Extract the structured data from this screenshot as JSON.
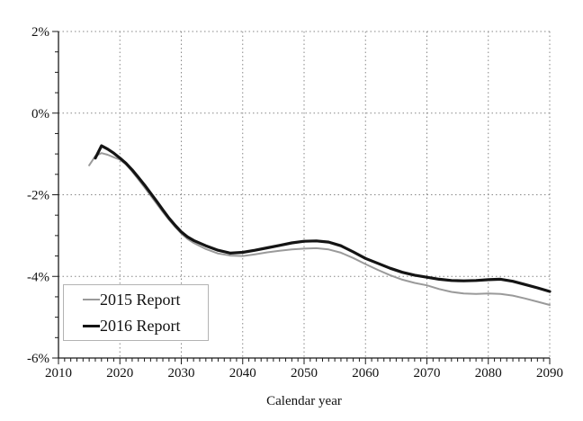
{
  "chart_data": {
    "type": "line",
    "title": "",
    "xlabel": "Calendar year",
    "ylabel": "",
    "x_axis": {
      "min": 2010,
      "max": 2090,
      "major_tick_step": 10,
      "minor_tick_step": 1,
      "tick_values": [
        2010,
        2020,
        2030,
        2040,
        2050,
        2060,
        2070,
        2080,
        2090
      ],
      "tick_labels": [
        "2010",
        "2020",
        "2030",
        "2040",
        "2050",
        "2060",
        "2070",
        "2080",
        "2090"
      ]
    },
    "y_axis": {
      "min": -6,
      "max": 2,
      "major_tick_step": 2,
      "minor_tick_step": 0.5,
      "tick_values": [
        2,
        0,
        -2,
        -4,
        -6
      ],
      "tick_labels": [
        "2%",
        "0%",
        "-2%",
        "-4%",
        "-6%"
      ]
    },
    "grid": {
      "style": "dotted",
      "color": "#878787",
      "on_major_x": true,
      "on_major_y": true
    },
    "axis_color": "#1a1a1a",
    "legend": {
      "position": "lower-left",
      "border_color": "#b3b3b3"
    },
    "series": [
      {
        "name": "2015 Report",
        "color": "#9a9a9a",
        "stroke_width": 2,
        "points": [
          [
            2015,
            -1.28
          ],
          [
            2016,
            -1.05
          ],
          [
            2017,
            -0.98
          ],
          [
            2018,
            -1.02
          ],
          [
            2019,
            -1.08
          ],
          [
            2020,
            -1.14
          ],
          [
            2021,
            -1.26
          ],
          [
            2022,
            -1.43
          ],
          [
            2023,
            -1.62
          ],
          [
            2024,
            -1.82
          ],
          [
            2025,
            -2.02
          ],
          [
            2026,
            -2.22
          ],
          [
            2027,
            -2.42
          ],
          [
            2028,
            -2.61
          ],
          [
            2029,
            -2.79
          ],
          [
            2030,
            -2.95
          ],
          [
            2031,
            -3.08
          ],
          [
            2032,
            -3.18
          ],
          [
            2034,
            -3.33
          ],
          [
            2036,
            -3.44
          ],
          [
            2038,
            -3.49
          ],
          [
            2040,
            -3.5
          ],
          [
            2042,
            -3.46
          ],
          [
            2044,
            -3.41
          ],
          [
            2046,
            -3.37
          ],
          [
            2048,
            -3.34
          ],
          [
            2050,
            -3.32
          ],
          [
            2052,
            -3.31
          ],
          [
            2054,
            -3.34
          ],
          [
            2056,
            -3.42
          ],
          [
            2058,
            -3.55
          ],
          [
            2060,
            -3.7
          ],
          [
            2062,
            -3.84
          ],
          [
            2064,
            -3.97
          ],
          [
            2066,
            -4.08
          ],
          [
            2068,
            -4.16
          ],
          [
            2070,
            -4.22
          ],
          [
            2072,
            -4.31
          ],
          [
            2074,
            -4.38
          ],
          [
            2076,
            -4.42
          ],
          [
            2078,
            -4.43
          ],
          [
            2080,
            -4.42
          ],
          [
            2082,
            -4.43
          ],
          [
            2084,
            -4.47
          ],
          [
            2086,
            -4.54
          ],
          [
            2088,
            -4.62
          ],
          [
            2090,
            -4.7
          ]
        ]
      },
      {
        "name": "2016 Report",
        "color": "#141414",
        "stroke_width": 3.2,
        "points": [
          [
            2016,
            -1.1
          ],
          [
            2017,
            -0.8
          ],
          [
            2018,
            -0.88
          ],
          [
            2019,
            -0.98
          ],
          [
            2020,
            -1.1
          ],
          [
            2021,
            -1.23
          ],
          [
            2022,
            -1.39
          ],
          [
            2023,
            -1.57
          ],
          [
            2024,
            -1.76
          ],
          [
            2025,
            -1.96
          ],
          [
            2026,
            -2.16
          ],
          [
            2027,
            -2.37
          ],
          [
            2028,
            -2.57
          ],
          [
            2029,
            -2.75
          ],
          [
            2030,
            -2.91
          ],
          [
            2031,
            -3.03
          ],
          [
            2032,
            -3.12
          ],
          [
            2034,
            -3.25
          ],
          [
            2036,
            -3.36
          ],
          [
            2038,
            -3.43
          ],
          [
            2040,
            -3.41
          ],
          [
            2042,
            -3.36
          ],
          [
            2044,
            -3.3
          ],
          [
            2046,
            -3.24
          ],
          [
            2048,
            -3.18
          ],
          [
            2050,
            -3.14
          ],
          [
            2052,
            -3.13
          ],
          [
            2054,
            -3.16
          ],
          [
            2056,
            -3.25
          ],
          [
            2058,
            -3.4
          ],
          [
            2060,
            -3.56
          ],
          [
            2062,
            -3.68
          ],
          [
            2064,
            -3.8
          ],
          [
            2066,
            -3.9
          ],
          [
            2068,
            -3.97
          ],
          [
            2070,
            -4.02
          ],
          [
            2072,
            -4.07
          ],
          [
            2074,
            -4.1
          ],
          [
            2076,
            -4.11
          ],
          [
            2078,
            -4.1
          ],
          [
            2080,
            -4.08
          ],
          [
            2082,
            -4.07
          ],
          [
            2084,
            -4.12
          ],
          [
            2086,
            -4.2
          ],
          [
            2088,
            -4.28
          ],
          [
            2090,
            -4.37
          ]
        ]
      }
    ]
  },
  "frame": {
    "background": "#ffffff",
    "text_color": "#111111"
  }
}
